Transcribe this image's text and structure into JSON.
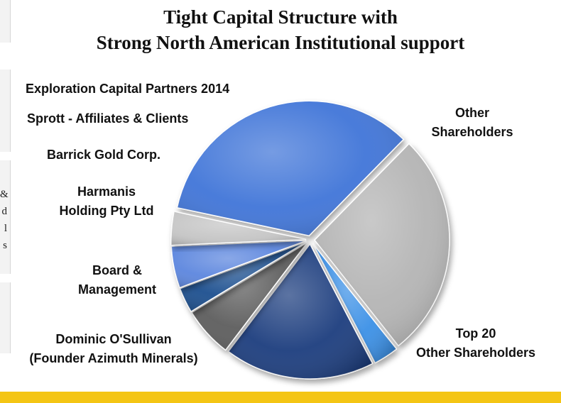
{
  "title": {
    "line1": "Tight Capital Structure with",
    "line2": "Strong North American Institutional support"
  },
  "side_text": [
    "&",
    "d",
    "l",
    "s"
  ],
  "chart_data": {
    "type": "pie",
    "title": "Tight Capital Structure with Strong North American Institutional support",
    "slices": [
      {
        "label": "Other Shareholders",
        "value": 34,
        "color": "#3f74d8"
      },
      {
        "label": "Top 20 Other Shareholders",
        "value": 27,
        "color": "#b4b4b4"
      },
      {
        "label": "Dominic O'Sullivan (Founder Azimuth Minerals)",
        "value": 3,
        "color": "#3a90e6"
      },
      {
        "label": "Board & Management",
        "value": 18,
        "color": "#1b3c7e"
      },
      {
        "label": "Harmanis Holding Pty Ltd",
        "value": 6,
        "color": "#5d5d5d"
      },
      {
        "label": "Barrick Gold Corp.",
        "value": 3,
        "color": "#1d4f8f"
      },
      {
        "label": "Sprott - Affiliates & Clients",
        "value": 5,
        "color": "#5c86de"
      },
      {
        "label": "Exploration Capital Partners 2014",
        "value": 4,
        "color": "#c6c6c6"
      }
    ],
    "legend": "none"
  },
  "labels": {
    "other": [
      "Other",
      "Shareholders"
    ],
    "top20": [
      "Top 20",
      "Other  Shareholders"
    ],
    "dominic": [
      "Dominic O'Sullivan",
      "(Founder Azimuth Minerals)"
    ],
    "board": [
      "Board &",
      "Management"
    ],
    "harmanis": [
      "Harmanis",
      "Holding Pty Ltd"
    ],
    "barrick": "Barrick Gold Corp.",
    "sprott": "Sprott - Affiliates & Clients",
    "exploration": "Exploration Capital Partners 2014"
  }
}
